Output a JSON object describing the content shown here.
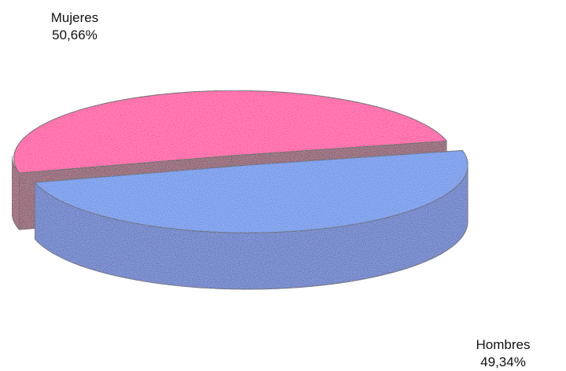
{
  "chart_data": {
    "type": "pie",
    "style": "3d-exploded",
    "slices": [
      {
        "label": "Mujeres",
        "value": 50.66,
        "value_label": "50,66%",
        "color": "#ff0a96",
        "side_color": "#8a1652"
      },
      {
        "label": "Hombres",
        "value": 49.34,
        "value_label": "49,34%",
        "color": "#4a86e8",
        "side_color": "#2f5fc0"
      }
    ],
    "legend": "none"
  }
}
